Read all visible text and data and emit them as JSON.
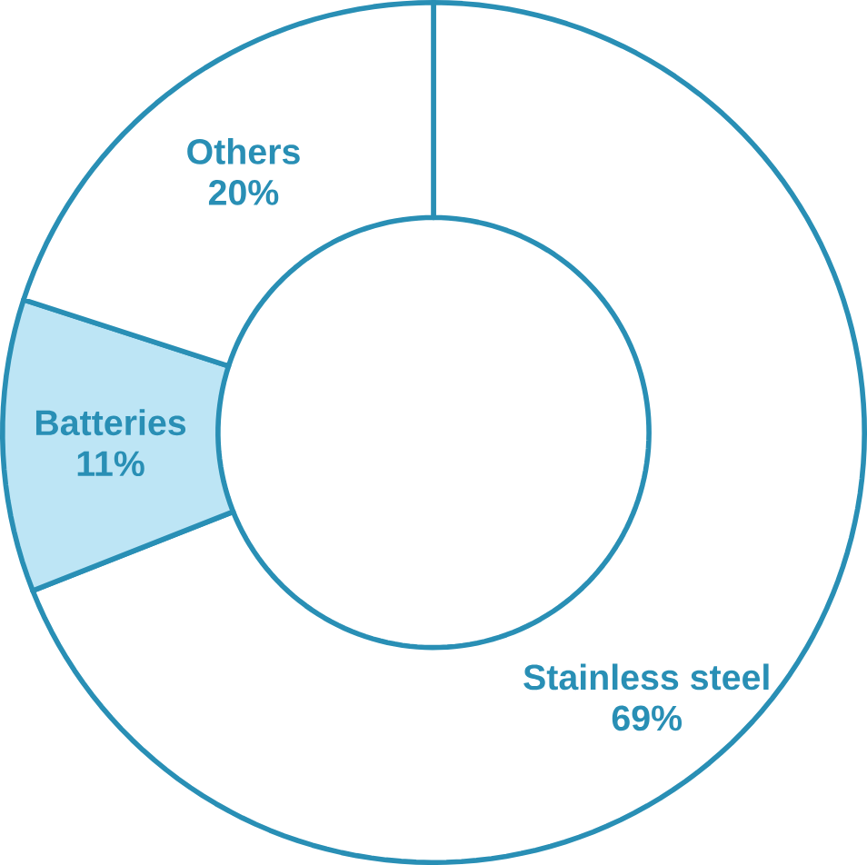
{
  "chart_data": {
    "type": "donut",
    "categories": [
      "Stainless steel",
      "Batteries",
      "Others"
    ],
    "values": [
      69,
      11,
      20
    ],
    "colors": [
      "#ffffff",
      "#bde5f5",
      "#ffffff"
    ],
    "value_labels": [
      "69%",
      "11%",
      "20%"
    ]
  }
}
